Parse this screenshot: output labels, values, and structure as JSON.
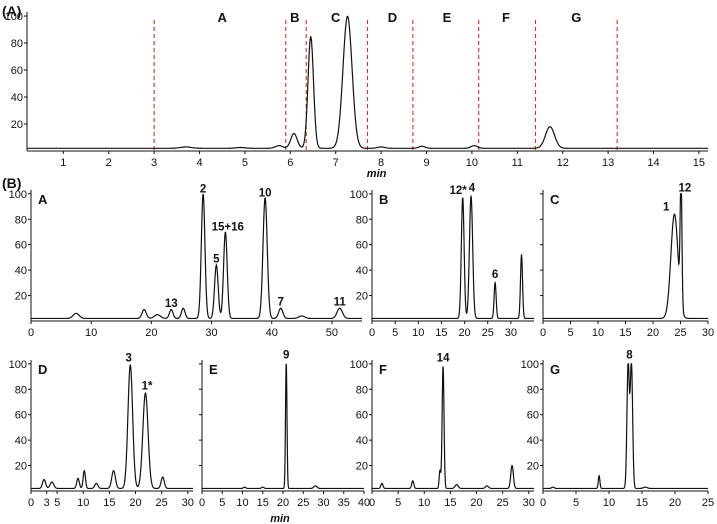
{
  "figure": {
    "label_a": "(A)",
    "label_b": "(B)"
  },
  "chart_data": [
    {
      "id": "A",
      "type": "line",
      "xlabel": "min",
      "ylabel": "",
      "xlim": [
        0.2,
        15.2
      ],
      "ylim": [
        0,
        103
      ],
      "x_ticks": [
        1,
        2,
        3,
        4,
        5,
        6,
        7,
        8,
        9,
        10,
        11,
        12,
        13,
        14,
        15
      ],
      "y_ticks": [
        20,
        40,
        60,
        80,
        100
      ],
      "fraction_cuts": [
        3.0,
        5.9,
        6.35,
        7.7,
        8.7,
        10.15,
        11.4,
        13.2
      ],
      "fractions": [
        {
          "name": "A",
          "x": 4.5
        },
        {
          "name": "B",
          "x": 6.1
        },
        {
          "name": "C",
          "x": 7.0
        },
        {
          "name": "D",
          "x": 8.25
        },
        {
          "name": "E",
          "x": 9.45
        },
        {
          "name": "F",
          "x": 10.75
        },
        {
          "name": "G",
          "x": 12.3
        }
      ],
      "baseline": 2,
      "peaks": [
        {
          "x": 3.7,
          "h": 1,
          "w": 0.12
        },
        {
          "x": 4.9,
          "h": 0.6,
          "w": 0.1
        },
        {
          "x": 5.75,
          "h": 2,
          "w": 0.08
        },
        {
          "x": 6.08,
          "h": 11,
          "w": 0.07
        },
        {
          "x": 6.45,
          "h": 83,
          "w": 0.06
        },
        {
          "x": 7.26,
          "h": 98,
          "w": 0.1
        },
        {
          "x": 8.0,
          "h": 1,
          "w": 0.08
        },
        {
          "x": 8.9,
          "h": 1.5,
          "w": 0.07
        },
        {
          "x": 10.05,
          "h": 2,
          "w": 0.07
        },
        {
          "x": 11.72,
          "h": 16,
          "w": 0.1
        }
      ]
    },
    {
      "id": "A",
      "type": "line",
      "xlim": [
        0,
        55
      ],
      "ylim": [
        0,
        103
      ],
      "x_ticks": [
        0,
        10,
        20,
        30,
        40,
        50
      ],
      "y_ticks": [
        20,
        40,
        60,
        80,
        100
      ],
      "baseline": 2,
      "peaks": [
        {
          "x": 7.5,
          "h": 4,
          "w": 0.5
        },
        {
          "x": 18.8,
          "h": 7,
          "w": 0.35
        },
        {
          "x": 21,
          "h": 3,
          "w": 0.5
        },
        {
          "x": 23.3,
          "h": 7,
          "w": 0.3
        },
        {
          "x": 25.3,
          "h": 8,
          "w": 0.3
        },
        {
          "x": 28.6,
          "h": 98,
          "w": 0.3
        },
        {
          "x": 30.8,
          "h": 42,
          "w": 0.3
        },
        {
          "x": 32.3,
          "h": 68,
          "w": 0.3
        },
        {
          "x": 38.9,
          "h": 95,
          "w": 0.35
        },
        {
          "x": 41.5,
          "h": 8,
          "w": 0.35
        },
        {
          "x": 45,
          "h": 2,
          "w": 0.5
        },
        {
          "x": 51.3,
          "h": 8,
          "w": 0.45
        }
      ],
      "peak_labels": [
        {
          "text": "2",
          "x": 28.6,
          "y": 101
        },
        {
          "text": "5",
          "x": 30.8,
          "y": 46
        },
        {
          "text": "15+16",
          "x": 32.7,
          "y": 71
        },
        {
          "text": "10",
          "x": 38.9,
          "y": 98
        },
        {
          "text": "13",
          "x": 23.3,
          "y": 11
        },
        {
          "text": "7",
          "x": 41.5,
          "y": 12
        },
        {
          "text": "11",
          "x": 51.3,
          "y": 12
        }
      ]
    },
    {
      "id": "B",
      "type": "line",
      "xlim": [
        0,
        35
      ],
      "ylim": [
        0,
        103
      ],
      "x_ticks": [
        0,
        5,
        10,
        15,
        20,
        25,
        30
      ],
      "y_ticks": [
        20,
        40,
        60,
        80,
        100
      ],
      "baseline": 2,
      "peaks": [
        {
          "x": 19.6,
          "h": 95,
          "w": 0.3
        },
        {
          "x": 21.4,
          "h": 96,
          "w": 0.35
        },
        {
          "x": 26.6,
          "h": 28,
          "w": 0.22
        },
        {
          "x": 32.3,
          "h": 50,
          "w": 0.22
        }
      ],
      "peak_labels": [
        {
          "text": "12*",
          "x": 18.6,
          "y": 100
        },
        {
          "text": "4",
          "x": 21.6,
          "y": 102
        },
        {
          "text": "6",
          "x": 26.6,
          "y": 34
        }
      ]
    },
    {
      "id": "C",
      "type": "line",
      "xlim": [
        0,
        30
      ],
      "ylim": [
        0,
        103
      ],
      "x_ticks": [
        0,
        5,
        10,
        15,
        20,
        25,
        30
      ],
      "y_ticks": [
        20,
        40,
        60,
        80,
        100
      ],
      "baseline": 2,
      "peaks": [
        {
          "x": 23.9,
          "h": 82,
          "w": 0.65
        },
        {
          "x": 25.1,
          "h": 99,
          "w": 0.16
        }
      ],
      "peak_labels": [
        {
          "text": "1",
          "x": 22.4,
          "y": 87
        },
        {
          "text": "12",
          "x": 25.8,
          "y": 102
        }
      ]
    },
    {
      "id": "D",
      "type": "line",
      "xlim": [
        0,
        31
      ],
      "ylim": [
        0,
        103
      ],
      "x_ticks": [
        0,
        5,
        10,
        15,
        20,
        25,
        30
      ],
      "x_tick_labels": [
        "0",
        "3",
        "5",
        "10",
        "15",
        "20",
        "25",
        "30"
      ],
      "x_tick_positions": [
        0,
        3,
        5,
        10,
        15,
        20,
        25,
        30
      ],
      "y_ticks": [
        20,
        40,
        60,
        80,
        100
      ],
      "baseline": 2,
      "peaks": [
        {
          "x": 2.5,
          "h": 7,
          "w": 0.3
        },
        {
          "x": 4.0,
          "h": 5,
          "w": 0.35
        },
        {
          "x": 9.0,
          "h": 8,
          "w": 0.25
        },
        {
          "x": 10.2,
          "h": 14,
          "w": 0.22
        },
        {
          "x": 12.5,
          "h": 4,
          "w": 0.3
        },
        {
          "x": 15.8,
          "h": 14,
          "w": 0.35
        },
        {
          "x": 19.0,
          "h": 97,
          "w": 0.45
        },
        {
          "x": 21.9,
          "h": 75,
          "w": 0.5
        },
        {
          "x": 25.2,
          "h": 9,
          "w": 0.3
        }
      ],
      "peak_labels": [
        {
          "text": "3",
          "x": 18.7,
          "y": 102
        },
        {
          "text": "1*",
          "x": 22.2,
          "y": 80
        }
      ]
    },
    {
      "id": "E",
      "type": "line",
      "xlim": [
        0,
        40
      ],
      "ylim": [
        0,
        103
      ],
      "x_ticks": [
        0,
        5,
        10,
        15,
        20,
        25,
        30,
        35,
        40
      ],
      "y_ticks": [
        20,
        40,
        60,
        80,
        100
      ],
      "baseline": 2,
      "peaks": [
        {
          "x": 10.5,
          "h": 1,
          "w": 0.3
        },
        {
          "x": 15,
          "h": 1,
          "w": 0.3
        },
        {
          "x": 20.8,
          "h": 99,
          "w": 0.18
        },
        {
          "x": 28,
          "h": 2,
          "w": 0.4
        }
      ],
      "peak_labels": [
        {
          "text": "9",
          "x": 20.8,
          "y": 104
        }
      ]
    },
    {
      "id": "F",
      "type": "line",
      "xlim": [
        0,
        31
      ],
      "ylim": [
        0,
        103
      ],
      "x_ticks": [
        0,
        5,
        10,
        15,
        20,
        25,
        30
      ],
      "y_ticks": [
        20,
        40,
        60,
        80,
        100
      ],
      "baseline": 2,
      "peaks": [
        {
          "x": 1.9,
          "h": 4,
          "w": 0.2
        },
        {
          "x": 7.8,
          "h": 6,
          "w": 0.2
        },
        {
          "x": 13.0,
          "h": 14,
          "w": 0.15
        },
        {
          "x": 13.6,
          "h": 96,
          "w": 0.18
        },
        {
          "x": 16.2,
          "h": 3,
          "w": 0.3
        },
        {
          "x": 22,
          "h": 2,
          "w": 0.3
        },
        {
          "x": 26.8,
          "h": 18,
          "w": 0.25
        }
      ],
      "peak_labels": [
        {
          "text": "14",
          "x": 13.6,
          "y": 102
        }
      ]
    },
    {
      "id": "G",
      "type": "line",
      "xlim": [
        0,
        25
      ],
      "ylim": [
        0,
        103
      ],
      "x_ticks": [
        0,
        5,
        10,
        15,
        20,
        25
      ],
      "y_ticks": [
        20,
        40,
        60,
        80,
        100
      ],
      "baseline": 2,
      "peaks": [
        {
          "x": 1.5,
          "h": 1,
          "w": 0.2
        },
        {
          "x": 8.5,
          "h": 10,
          "w": 0.12
        },
        {
          "x": 12.9,
          "h": 98,
          "w": 0.18
        },
        {
          "x": 13.4,
          "h": 98,
          "w": 0.18
        },
        {
          "x": 15.5,
          "h": 1,
          "w": 0.3
        }
      ],
      "peak_labels": [
        {
          "text": "8",
          "x": 13.1,
          "y": 104
        }
      ],
      "xlabel": "min"
    }
  ]
}
